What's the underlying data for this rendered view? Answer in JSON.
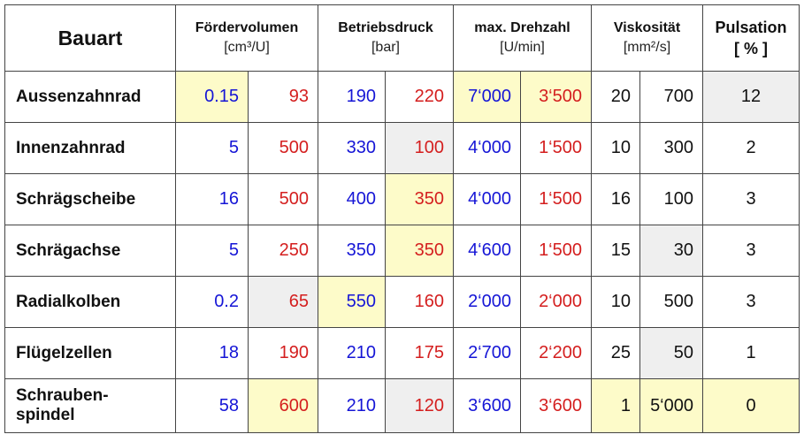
{
  "colors": {
    "blue": "#1515d6",
    "red": "#d41e1e",
    "yellow_highlight": "#fdfbc9",
    "gray_highlight": "#efefef"
  },
  "headers": {
    "bauart": "Bauart",
    "foerdervolumen": {
      "label": "Fördervolumen",
      "unit": "[cm³/U]"
    },
    "betriebsdruck": {
      "label": "Betriebsdruck",
      "unit": "[bar]"
    },
    "drehzahl": {
      "label": "max. Drehzahl",
      "unit": "[U/min]"
    },
    "viskositaet": {
      "label": "Viskosität",
      "unit": "[mm²/s]"
    },
    "pulsation": {
      "label": "Pulsation",
      "unit": "[ % ]"
    }
  },
  "rows": [
    {
      "name": "Aussenzahnrad",
      "fv_min": "0.15",
      "fv_max": "93",
      "p_min": "190",
      "p_max": "220",
      "n_min": "7‘000",
      "n_max": "3‘500",
      "v_min": "20",
      "v_max": "700",
      "puls": "12"
    },
    {
      "name": "Innenzahnrad",
      "fv_min": "5",
      "fv_max": "500",
      "p_min": "330",
      "p_max": "100",
      "n_min": "4‘000",
      "n_max": "1‘500",
      "v_min": "10",
      "v_max": "300",
      "puls": "2"
    },
    {
      "name": "Schrägscheibe",
      "fv_min": "16",
      "fv_max": "500",
      "p_min": "400",
      "p_max": "350",
      "n_min": "4‘000",
      "n_max": "1‘500",
      "v_min": "16",
      "v_max": "100",
      "puls": "3"
    },
    {
      "name": "Schrägachse",
      "fv_min": "5",
      "fv_max": "250",
      "p_min": "350",
      "p_max": "350",
      "n_min": "4‘600",
      "n_max": "1‘500",
      "v_min": "15",
      "v_max": "30",
      "puls": "3"
    },
    {
      "name": "Radialkolben",
      "fv_min": "0.2",
      "fv_max": "65",
      "p_min": "550",
      "p_max": "160",
      "n_min": "2‘000",
      "n_max": "2‘000",
      "v_min": "10",
      "v_max": "500",
      "puls": "3"
    },
    {
      "name": "Flügelzellen",
      "fv_min": "18",
      "fv_max": "190",
      "p_min": "210",
      "p_max": "175",
      "n_min": "2‘700",
      "n_max": "2‘200",
      "v_min": "25",
      "v_max": "50",
      "puls": "1"
    },
    {
      "name_line1": "Schrauben-",
      "name_line2": "spindel",
      "fv_min": "58",
      "fv_max": "600",
      "p_min": "210",
      "p_max": "120",
      "n_min": "3‘600",
      "n_max": "3‘600",
      "v_min": "1",
      "v_max": "5‘000",
      "puls": "0"
    }
  ]
}
